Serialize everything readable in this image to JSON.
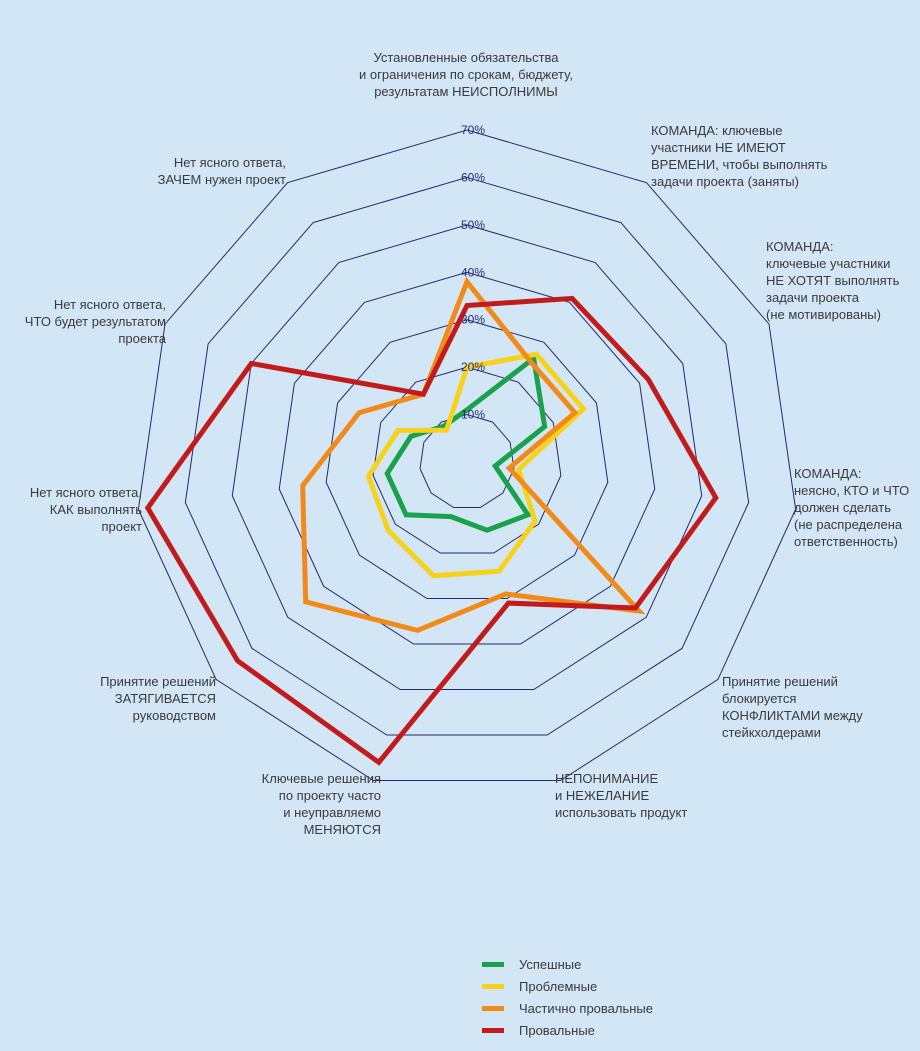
{
  "chart_data": {
    "type": "radar",
    "axes": [
      [
        "Установленные обязательства",
        "и ограничения по срокам, бюджету,",
        "результатам НЕИСПОЛНИМЫ"
      ],
      [
        "КОМАНДА: ключевые",
        "участники НЕ ИМЕЮТ",
        "ВРЕМЕНИ, чтобы выполнять",
        "задачи проекта (заняты)"
      ],
      [
        "КОМАНДА:",
        "ключевые участники",
        "НЕ ХОТЯТ выполнять",
        "задачи проекта",
        "(не мотивированы)"
      ],
      [
        "КОМАНДА:",
        "неясно, КТО и ЧТО",
        "должен сделать",
        "(не распределена",
        "ответственность)"
      ],
      [
        "Принятие решений",
        "блокируется",
        "КОНФЛИКТАМИ между",
        "стейкхолдерами"
      ],
      [
        "НЕПОНИМАНИЕ",
        "и НЕЖЕЛАНИЕ",
        "использовать продукт"
      ],
      [
        "Ключевые решения",
        "по проекту часто",
        "и неуправляемо",
        "МЕНЯЮТСЯ"
      ],
      [
        "Принятие решений",
        "ЗАТЯГИВАЕТСЯ",
        "руководством"
      ],
      [
        "Нет ясного ответа,",
        "КАК выполнять",
        "проект"
      ],
      [
        "Нет ясного ответа,",
        "ЧТО будет результатом",
        "проекта"
      ],
      [
        "Нет ясного ответа,",
        "ЗАЧЕМ нужен проект"
      ]
    ],
    "ticks": [
      "10%",
      "20%",
      "30%",
      "40%",
      "50%",
      "60%",
      "70%"
    ],
    "range": [
      0,
      70
    ],
    "grid": true,
    "legend_position": "bottom",
    "series": [
      {
        "name": "Успешные",
        "color": "#1aa14b",
        "values": [
          11,
          26,
          18,
          6,
          17,
          15,
          12,
          17,
          17,
          13,
          9
        ]
      },
      {
        "name": "Проблемные",
        "color": "#f6d21a",
        "values": [
          20,
          27,
          27,
          11,
          19,
          24,
          25,
          22,
          21,
          16,
          8
        ]
      },
      {
        "name": "Частично провальные",
        "color": "#f28a19",
        "values": [
          38,
          25,
          25,
          9,
          48,
          29,
          37,
          45,
          35,
          25,
          17
        ]
      },
      {
        "name": "Провальные",
        "color": "#c11b1b",
        "values": [
          33,
          41,
          42,
          53,
          47,
          31,
          66,
          64,
          68,
          50,
          17
        ]
      }
    ]
  }
}
